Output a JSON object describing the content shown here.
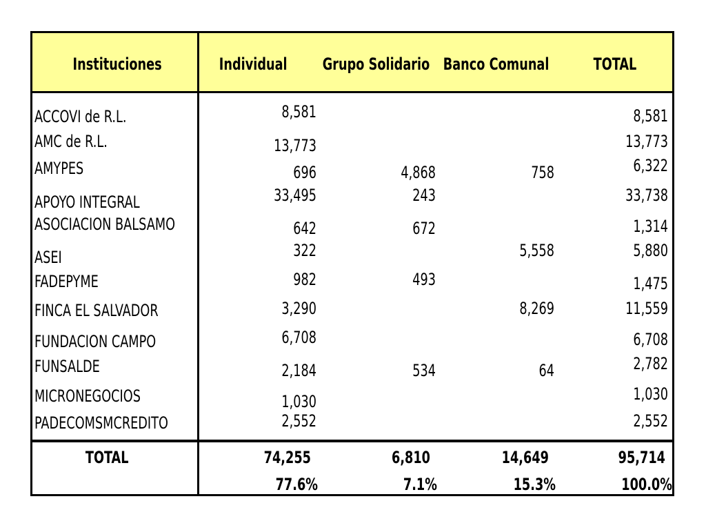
{
  "chart_data": {
    "type": "table",
    "columns": [
      "Instituciones",
      "Individual",
      "Grupo Solidario",
      "Banco Comunal",
      "TOTAL"
    ],
    "rows": [
      {
        "institucion": "ACCOVI de R.L.",
        "individual": "8,581",
        "grupo_solidario": "",
        "banco_comunal": "",
        "total": "8,581"
      },
      {
        "institucion": "AMC de R.L.",
        "individual": "13,773",
        "grupo_solidario": "",
        "banco_comunal": "",
        "total": "13,773"
      },
      {
        "institucion": "AMYPES",
        "individual": "696",
        "grupo_solidario": "4,868",
        "banco_comunal": "758",
        "total": "6,322"
      },
      {
        "institucion": "APOYO INTEGRAL",
        "individual": "33,495",
        "grupo_solidario": "243",
        "banco_comunal": "",
        "total": "33,738"
      },
      {
        "institucion": "ASOCIACION BALSAMO",
        "individual": "642",
        "grupo_solidario": "672",
        "banco_comunal": "",
        "total": "1,314"
      },
      {
        "institucion": "ASEI",
        "individual": "322",
        "grupo_solidario": "",
        "banco_comunal": "5,558",
        "total": "5,880"
      },
      {
        "institucion": "FADEPYME",
        "individual": "982",
        "grupo_solidario": "493",
        "banco_comunal": "",
        "total": "1,475"
      },
      {
        "institucion": "FINCA EL SALVADOR",
        "individual": "3,290",
        "grupo_solidario": "",
        "banco_comunal": "8,269",
        "total": "11,559"
      },
      {
        "institucion": "FUNDACION CAMPO",
        "individual": "6,708",
        "grupo_solidario": "",
        "banco_comunal": "",
        "total": "6,708"
      },
      {
        "institucion": "FUNSALDE",
        "individual": "2,184",
        "grupo_solidario": "534",
        "banco_comunal": "64",
        "total": "2,782"
      },
      {
        "institucion": "MICRONEGOCIOS",
        "individual": "1,030",
        "grupo_solidario": "",
        "banco_comunal": "",
        "total": "1,030"
      },
      {
        "institucion": "PADECOMSMCREDITO",
        "individual": "2,552",
        "grupo_solidario": "",
        "banco_comunal": "",
        "total": "2,552"
      }
    ],
    "totals": {
      "label": "TOTAL",
      "individual": "74,255",
      "grupo_solidario": "6,810",
      "banco_comunal": "14,649",
      "total": "95,714"
    },
    "percentages": {
      "individual": "77.6%",
      "grupo_solidario": "7.1%",
      "banco_comunal": "15.3%",
      "total": "100.0%"
    },
    "header_bg": "#ffff99"
  }
}
